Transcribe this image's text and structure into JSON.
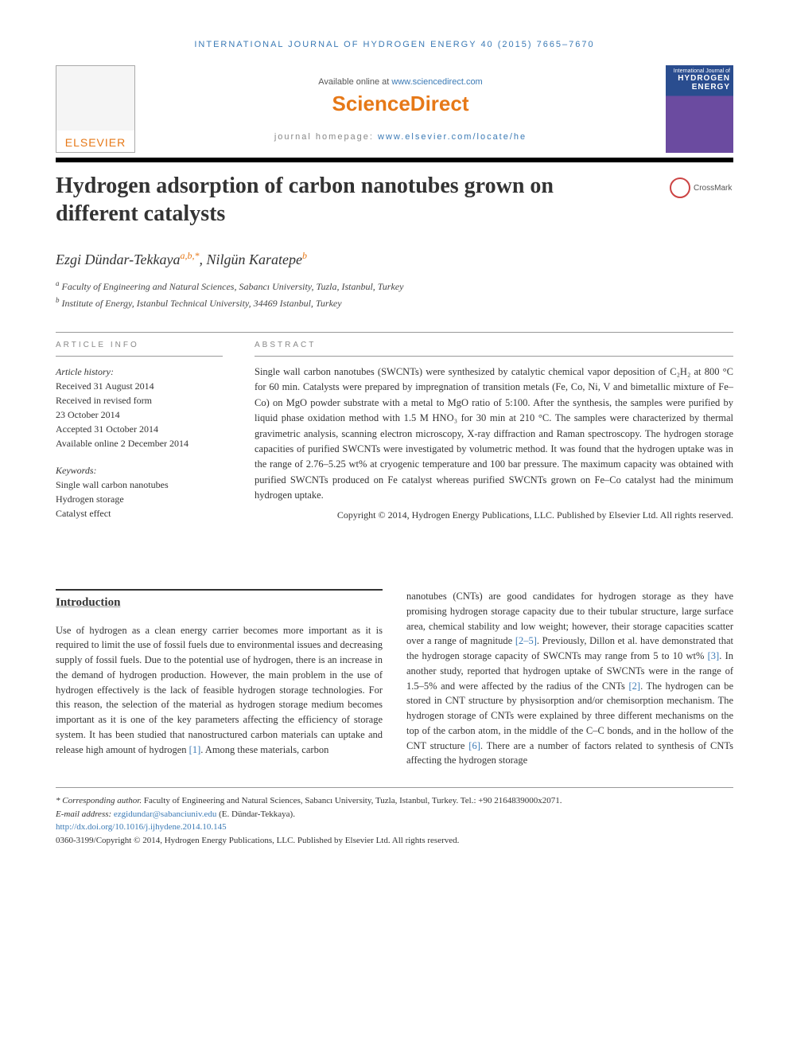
{
  "header": {
    "journal_ref": "INTERNATIONAL JOURNAL OF HYDROGEN ENERGY 40 (2015) 7665–7670",
    "available_prefix": "Available online at ",
    "available_link": "www.sciencedirect.com",
    "sd_logo": "ScienceDirect",
    "homepage_prefix": "journal homepage: ",
    "homepage_link": "www.elsevier.com/locate/he",
    "elsevier_label": "ELSEVIER",
    "cover_top": "International Journal of",
    "cover_main": "HYDROGEN",
    "cover_sub": "ENERGY"
  },
  "title": "Hydrogen adsorption of carbon nanotubes grown on different catalysts",
  "crossmark": "CrossMark",
  "authors": {
    "a1_name": "Ezgi Dündar-Tekkaya",
    "a1_sup": "a,b,*",
    "sep": ", ",
    "a2_name": "Nilgün Karatepe",
    "a2_sup": "b"
  },
  "affiliations": {
    "a": "Faculty of Engineering and Natural Sciences, Sabancı University, Tuzla, Istanbul, Turkey",
    "b": "Institute of Energy, Istanbul Technical University, 34469 Istanbul, Turkey"
  },
  "info": {
    "label": "ARTICLE INFO",
    "history_label": "Article history:",
    "received": "Received 31 August 2014",
    "revised1": "Received in revised form",
    "revised2": "23 October 2014",
    "accepted": "Accepted 31 October 2014",
    "online": "Available online 2 December 2014",
    "keywords_label": "Keywords:",
    "kw1": "Single wall carbon nanotubes",
    "kw2": "Hydrogen storage",
    "kw3": "Catalyst effect"
  },
  "abstract": {
    "label": "ABSTRACT",
    "text": "Single wall carbon nanotubes (SWCNTs) were synthesized by catalytic chemical vapor deposition of C₂H₂ at 800 °C for 60 min. Catalysts were prepared by impregnation of transition metals (Fe, Co, Ni, V and bimetallic mixture of Fe–Co) on MgO powder substrate with a metal to MgO ratio of 5:100. After the synthesis, the samples were purified by liquid phase oxidation method with 1.5 M HNO₃ for 30 min at 210 °C. The samples were characterized by thermal gravimetric analysis, scanning electron microscopy, X-ray diffraction and Raman spectroscopy. The hydrogen storage capacities of purified SWCNTs were investigated by volumetric method. It was found that the hydrogen uptake was in the range of 2.76–5.25 wt% at cryogenic temperature and 100 bar pressure. The maximum capacity was obtained with purified SWCNTs produced on Fe catalyst whereas purified SWCNTs grown on Fe–Co catalyst had the minimum hydrogen uptake.",
    "copyright": "Copyright © 2014, Hydrogen Energy Publications, LLC. Published by Elsevier Ltd. All rights reserved."
  },
  "body": {
    "intro_heading": "Introduction",
    "col1_p1a": "Use of hydrogen as a clean energy carrier becomes more important as it is required to limit the use of fossil fuels due to environmental issues and decreasing supply of fossil fuels. Due to the potential use of hydrogen, there is an increase in the demand of hydrogen production. However, the main problem in the use of hydrogen effectively is the lack of feasible hydrogen storage technologies. For this reason, the selection of the material as hydrogen storage medium becomes important as it is one of the key parameters affecting the efficiency of storage system. It has been studied that nanostructured carbon materials can uptake and release high amount of hydrogen ",
    "ref1": "[1]",
    "col1_p1b": ". Among these materials, carbon",
    "col2_p1a": "nanotubes (CNTs) are good candidates for hydrogen storage as they have promising hydrogen storage capacity due to their tubular structure, large surface area, chemical stability and low weight; however, their storage capacities scatter over a range of magnitude ",
    "ref25": "[2–5]",
    "col2_p1b": ". Previously, Dillon et al. have demonstrated that the hydrogen storage capacity of SWCNTs may range from 5 to 10 wt% ",
    "ref3": "[3]",
    "col2_p1c": ". In another study, reported that hydrogen uptake of SWCNTs were in the range of 1.5–5% and were affected by the radius of the CNTs ",
    "ref2": "[2]",
    "col2_p1d": ". The hydrogen can be stored in CNT structure by physisorption and/or chemisorption mechanism. The hydrogen storage of CNTs were explained by three different mechanisms on the top of the carbon atom, in the middle of the C–C bonds, and in the hollow of the CNT structure ",
    "ref6": "[6]",
    "col2_p1e": ". There are a number of factors related to synthesis of CNTs affecting the hydrogen storage"
  },
  "footer": {
    "corr_label": "* Corresponding author.",
    "corr_text": " Faculty of Engineering and Natural Sciences, Sabancı University, Tuzla, Istanbul, Turkey. Tel.: +90 2164839000x2071.",
    "email_label": "E-mail address: ",
    "email": "ezgidundar@sabanciuniv.edu",
    "email_suffix": " (E. Dündar-Tekkaya).",
    "doi": "http://dx.doi.org/10.1016/j.ijhydene.2014.10.145",
    "issn_line": "0360-3199/Copyright © 2014, Hydrogen Energy Publications, LLC. Published by Elsevier Ltd. All rights reserved."
  },
  "colors": {
    "link": "#3b7ab5",
    "orange": "#e67817",
    "text": "#333333"
  }
}
